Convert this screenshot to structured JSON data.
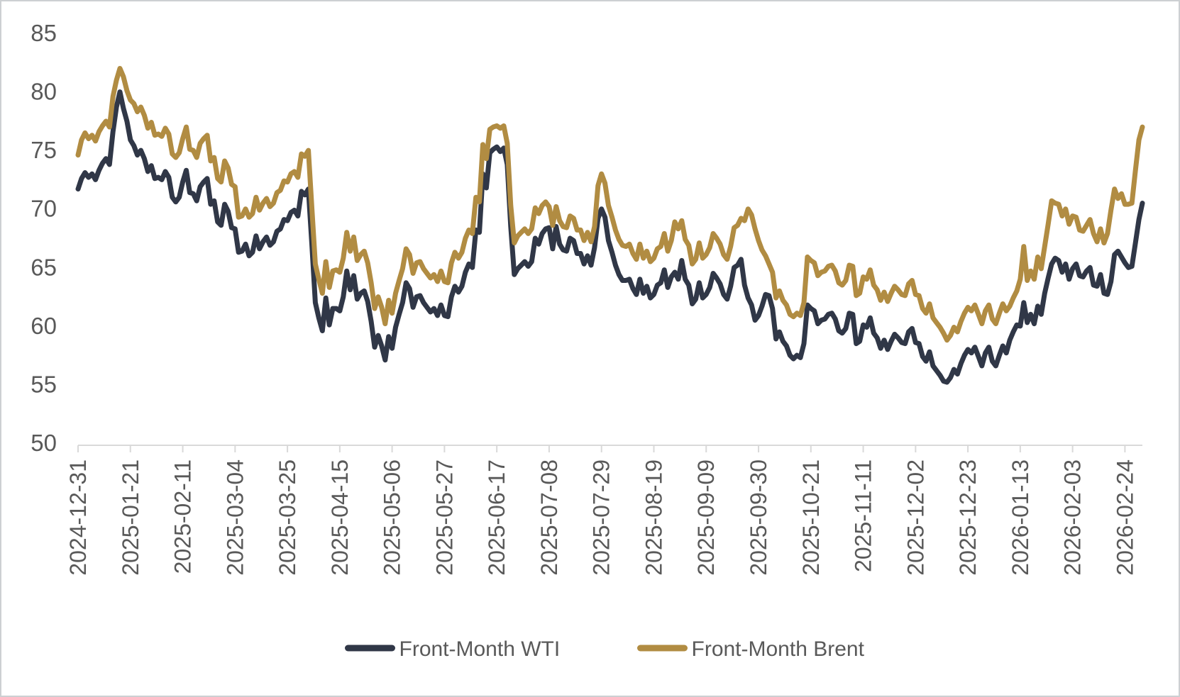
{
  "chart_data": {
    "type": "line",
    "title": "",
    "xlabel": "",
    "ylabel": "",
    "ylim": [
      50,
      85
    ],
    "y_ticks": [
      50,
      55,
      60,
      65,
      70,
      75,
      80,
      85
    ],
    "grid": false,
    "legend_position": "bottom-center",
    "axis_color": "#D9D9D9",
    "label_color": "#595959",
    "background_color": "#FFFFFF",
    "x_points_per_tick": 15,
    "n_points": 306,
    "x_tick_labels": [
      "2024-12-31",
      "2025-01-21",
      "2025-02-11",
      "2025-03-04",
      "2025-03-25",
      "2025-04-15",
      "2025-05-06",
      "2025-05-27",
      "2025-06-17",
      "2025-07-08",
      "2025-07-29",
      "2025-08-19",
      "2025-09-09",
      "2025-09-30",
      "2025-10-21",
      "2025-11-11",
      "2025-12-02",
      "2025-12-23",
      "2026-01-13",
      "2026-02-03",
      "2026-02-24"
    ],
    "series": [
      {
        "name": "Front-Month WTI",
        "color": "#303747",
        "values": [
          71.7,
          72.6,
          73.1,
          72.7,
          73.0,
          72.5,
          73.3,
          73.9,
          74.3,
          73.8,
          76.6,
          78.7,
          80.0,
          78.6,
          77.5,
          75.9,
          75.4,
          74.6,
          75.0,
          74.3,
          73.2,
          73.7,
          72.6,
          72.7,
          72.5,
          73.2,
          72.7,
          71.0,
          70.6,
          71.0,
          72.3,
          73.3,
          71.4,
          71.3,
          70.7,
          71.9,
          72.3,
          72.6,
          70.4,
          70.7,
          68.9,
          68.6,
          70.4,
          69.8,
          68.4,
          68.3,
          66.3,
          66.4,
          67.0,
          66.0,
          66.3,
          67.7,
          66.6,
          67.2,
          67.6,
          66.9,
          67.2,
          68.1,
          68.3,
          69.1,
          69.0,
          69.7,
          69.9,
          69.4,
          71.5,
          71.2,
          71.7,
          67.0,
          62.0,
          60.7,
          59.6,
          62.4,
          60.1,
          61.5,
          61.5,
          61.3,
          62.5,
          64.7,
          63.1,
          64.3,
          62.3,
          62.8,
          63.0,
          62.1,
          60.4,
          58.2,
          59.2,
          58.3,
          57.1,
          59.1,
          58.1,
          59.9,
          61.0,
          62.0,
          63.7,
          63.2,
          61.6,
          62.5,
          62.6,
          62.0,
          61.6,
          61.2,
          61.5,
          60.9,
          61.8,
          60.9,
          60.8,
          62.5,
          63.4,
          62.9,
          63.4,
          64.6,
          65.3,
          65.0,
          68.2,
          68.0,
          73.0,
          71.8,
          74.8,
          75.1,
          75.3,
          74.9,
          75.2,
          73.8,
          68.5,
          64.4,
          64.9,
          65.2,
          65.5,
          65.1,
          65.5,
          67.5,
          67.0,
          67.9,
          68.3,
          68.4,
          66.6,
          68.5,
          67.0,
          66.5,
          66.4,
          67.5,
          67.3,
          66.2,
          66.2,
          65.3,
          66.0,
          65.2,
          66.7,
          69.2,
          70.0,
          69.3,
          67.3,
          66.3,
          65.2,
          64.4,
          63.9,
          63.9,
          64.0,
          63.2,
          62.7,
          64.0,
          62.8,
          63.4,
          62.4,
          62.7,
          63.5,
          63.7,
          64.8,
          63.3,
          64.2,
          64.6,
          64.0,
          65.6,
          64.0,
          63.5,
          61.9,
          62.3,
          63.7,
          62.4,
          62.7,
          63.3,
          64.5,
          64.1,
          63.6,
          62.7,
          62.3,
          63.4,
          65.0,
          65.2,
          65.7,
          63.5,
          62.4,
          61.8,
          60.5,
          60.9,
          61.7,
          62.7,
          62.6,
          61.5,
          58.9,
          59.5,
          58.7,
          58.3,
          57.5,
          57.2,
          57.5,
          57.3,
          58.5,
          61.8,
          61.5,
          61.3,
          60.2,
          60.5,
          60.6,
          61.0,
          61.1,
          60.6,
          59.6,
          59.4,
          59.8,
          61.1,
          61.0,
          58.5,
          58.7,
          60.1,
          59.9,
          60.7,
          59.4,
          59.0,
          58.1,
          58.8,
          58.0,
          58.7,
          59.3,
          59.0,
          58.6,
          58.5,
          59.5,
          59.8,
          58.6,
          58.5,
          57.4,
          57.0,
          57.8,
          56.6,
          56.2,
          55.8,
          55.3,
          55.2,
          55.6,
          56.3,
          55.9,
          56.8,
          57.5,
          58.0,
          57.7,
          58.2,
          57.4,
          56.6,
          57.7,
          58.2,
          57.0,
          56.6,
          57.5,
          58.3,
          57.7,
          58.8,
          59.5,
          60.1,
          60.0,
          62.0,
          60.3,
          61.0,
          60.2,
          61.7,
          61.0,
          62.8,
          64.1,
          65.3,
          65.8,
          65.6,
          64.6,
          65.3,
          64.0,
          64.9,
          65.3,
          64.3,
          64.2,
          64.7,
          65.0,
          63.5,
          63.4,
          64.4,
          62.8,
          62.7,
          63.8,
          66.1,
          66.4,
          65.9,
          65.4,
          65.0,
          65.1,
          67.1,
          69.1,
          70.5
        ]
      },
      {
        "name": "Front-Month Brent",
        "color": "#B18C42",
        "values": [
          74.6,
          75.9,
          76.5,
          76.0,
          76.3,
          75.8,
          76.6,
          77.1,
          77.5,
          77.0,
          79.6,
          81.0,
          82.0,
          81.3,
          80.1,
          79.3,
          79.0,
          78.3,
          78.7,
          78.0,
          76.9,
          77.4,
          76.3,
          76.4,
          76.2,
          76.9,
          76.4,
          74.7,
          74.4,
          74.8,
          76.0,
          77.0,
          75.1,
          75.0,
          74.4,
          75.6,
          76.0,
          76.3,
          74.1,
          74.4,
          72.6,
          72.3,
          74.1,
          73.5,
          72.1,
          71.9,
          69.3,
          69.4,
          70.0,
          69.3,
          69.6,
          71.0,
          69.9,
          70.5,
          70.9,
          70.2,
          70.5,
          71.4,
          71.6,
          72.4,
          72.3,
          73.0,
          73.2,
          72.7,
          74.7,
          74.5,
          75.0,
          70.1,
          65.3,
          64.0,
          62.8,
          65.5,
          63.3,
          64.7,
          64.8,
          64.6,
          65.8,
          68.0,
          66.4,
          67.6,
          65.6,
          66.1,
          66.4,
          65.4,
          63.7,
          61.5,
          62.5,
          61.6,
          60.2,
          62.2,
          61.1,
          62.8,
          63.9,
          64.9,
          66.6,
          66.1,
          64.5,
          65.4,
          65.5,
          64.9,
          64.5,
          64.1,
          64.4,
          63.8,
          64.7,
          63.8,
          63.7,
          65.4,
          66.3,
          65.8,
          66.3,
          67.5,
          68.2,
          67.9,
          71.0,
          70.6,
          75.5,
          74.3,
          76.8,
          77.0,
          77.1,
          76.9,
          77.1,
          75.6,
          70.3,
          67.1,
          67.7,
          68.0,
          68.3,
          67.9,
          68.3,
          70.1,
          69.6,
          70.3,
          70.6,
          70.2,
          68.6,
          70.2,
          69.0,
          68.5,
          68.4,
          69.4,
          69.2,
          68.2,
          68.2,
          67.3,
          68.0,
          67.2,
          68.5,
          72.0,
          73.0,
          72.2,
          70.3,
          69.3,
          68.2,
          67.4,
          66.9,
          66.8,
          67.0,
          66.2,
          65.7,
          67.0,
          65.8,
          66.4,
          65.5,
          65.8,
          66.6,
          66.8,
          67.9,
          66.4,
          67.3,
          68.9,
          68.3,
          69.0,
          67.4,
          66.9,
          65.3,
          65.7,
          67.1,
          65.8,
          66.1,
          66.7,
          67.9,
          67.5,
          67.0,
          66.1,
          65.7,
          66.8,
          68.4,
          68.6,
          69.2,
          69.0,
          70.0,
          69.5,
          68.3,
          67.3,
          66.5,
          66.0,
          65.3,
          64.6,
          62.4,
          63.0,
          62.2,
          61.8,
          61.0,
          60.8,
          61.1,
          60.9,
          62.0,
          65.9,
          65.6,
          65.4,
          64.3,
          64.6,
          64.7,
          65.1,
          65.2,
          64.7,
          63.7,
          63.5,
          63.9,
          65.2,
          65.1,
          62.6,
          62.8,
          64.2,
          64.0,
          64.8,
          63.5,
          63.1,
          62.2,
          62.9,
          62.1,
          62.8,
          63.4,
          63.1,
          62.7,
          62.6,
          63.6,
          63.9,
          62.7,
          62.6,
          61.5,
          61.1,
          61.9,
          60.7,
          60.3,
          59.9,
          59.4,
          58.8,
          59.2,
          59.9,
          59.5,
          60.4,
          61.1,
          61.6,
          61.3,
          61.8,
          61.0,
          60.2,
          61.3,
          61.8,
          60.6,
          60.2,
          61.1,
          61.9,
          61.3,
          61.7,
          62.4,
          63.0,
          64.0,
          66.8,
          63.9,
          64.7,
          64.0,
          65.9,
          64.9,
          66.8,
          68.7,
          70.7,
          70.5,
          70.4,
          69.4,
          70.0,
          68.7,
          69.4,
          69.3,
          68.2,
          68.1,
          68.6,
          69.1,
          67.9,
          67.2,
          68.3,
          67.1,
          67.9,
          69.9,
          71.7,
          70.9,
          71.3,
          70.4,
          70.4,
          70.5,
          73.3,
          75.9,
          77.0
        ]
      }
    ]
  }
}
